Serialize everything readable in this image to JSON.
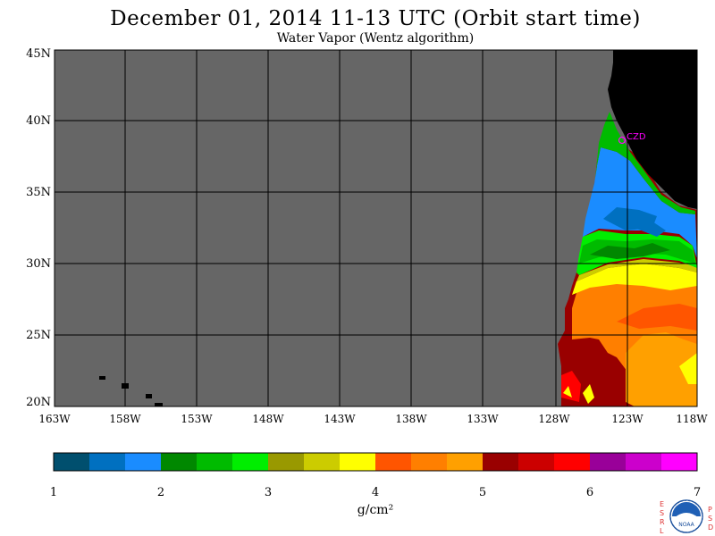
{
  "title": "December 01, 2014  11-13 UTC  (Orbit start time)",
  "subtitle": "Water Vapor (Wentz algorithm)",
  "map": {
    "lat_labels": [
      "45N",
      "40N",
      "35N",
      "30N",
      "25N",
      "20N"
    ],
    "lon_labels": [
      "163W",
      "158W",
      "153W",
      "148W",
      "143W",
      "138W",
      "133W",
      "128W",
      "123W",
      "118W"
    ],
    "station_label": "CZD",
    "station_color": "#ff00ff",
    "ocean_nodata_color": "#666666",
    "land_color": "#000000",
    "grid_color": "#000000"
  },
  "colorbar": {
    "colors": [
      "#004f6e",
      "#0070c0",
      "#1a8cff",
      "#008800",
      "#00bb00",
      "#00ee00",
      "#999900",
      "#cccc00",
      "#ffff00",
      "#ff5500",
      "#ff7f00",
      "#ffa000",
      "#990000",
      "#cc0000",
      "#ff0000",
      "#990099",
      "#cc00cc",
      "#ff00ff"
    ],
    "ticks": [
      "1",
      "2",
      "3",
      "4",
      "5",
      "6",
      "7"
    ],
    "units": "g/cm²"
  },
  "logo": {
    "left_letters": [
      "E",
      "S",
      "R",
      "L"
    ],
    "right_letters": [
      "P",
      "S",
      "D"
    ],
    "name": "NOAA"
  }
}
